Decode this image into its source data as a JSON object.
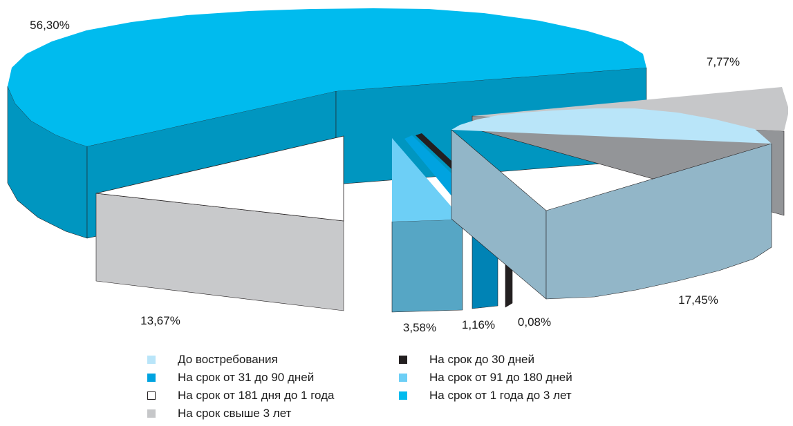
{
  "chart_data": {
    "type": "pie",
    "style": "3d-exploded",
    "slices": [
      {
        "label": "До востребования",
        "value": 17.45,
        "value_label": "17,45%",
        "color": "#b9e5f9",
        "side_color": "#92b6c8"
      },
      {
        "label": "На срок до 30 дней",
        "value": 0.08,
        "value_label": "0,08%",
        "color": "#231f20",
        "side_color": "#231f20"
      },
      {
        "label": "На срок от 31 до 90 дней",
        "value": 1.16,
        "value_label": "1,16%",
        "color": "#00a3e0",
        "side_color": "#0083b5"
      },
      {
        "label": "На срок от 91  до 180 дней",
        "value": 3.58,
        "value_label": "3,58%",
        "color": "#6dcff6",
        "side_color": "#56a6c5"
      },
      {
        "label": "На срок от 181 дня до 1 года",
        "value": 13.67,
        "value_label": "13,67%",
        "color": "#ffffff",
        "side_color": "#c8c9cb"
      },
      {
        "label": "На срок от 1 года до 3 лет",
        "value": 56.3,
        "value_label": "56,30%",
        "color": "#00bbee",
        "side_color": "#0096c0"
      },
      {
        "label": "На срок свыше 3 лет",
        "value": 7.77,
        "value_label": "7,77%",
        "color": "#c6c7c9",
        "side_color": "#939598"
      }
    ],
    "legend_left": [
      {
        "label": "До востребования",
        "color": "#b9e5f9"
      },
      {
        "label": "На срок от 31 до 90 дней",
        "color": "#00a3e0"
      },
      {
        "label": "На срок от 181 дня до 1 года",
        "color": "#ffffff",
        "border": "#231f20"
      },
      {
        "label": "На срок свыше 3 лет",
        "color": "#c6c7c9"
      }
    ],
    "legend_right": [
      {
        "label": "На срок до 30 дней",
        "color": "#231f20"
      },
      {
        "label": "На срок от 91  до 180 дней",
        "color": "#6dcff6"
      },
      {
        "label": "На срок от 1 года до 3 лет",
        "color": "#00bbee"
      }
    ],
    "legend_position": "bottom"
  }
}
